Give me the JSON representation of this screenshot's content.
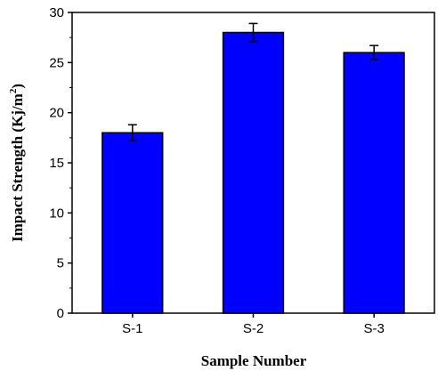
{
  "chart_data": {
    "type": "bar",
    "categories": [
      "S-1",
      "S-2",
      "S-3"
    ],
    "values": [
      18,
      28,
      26
    ],
    "errors": [
      0.8,
      0.9,
      0.7
    ],
    "xlabel": "Sample Number",
    "ylabel": {
      "prefix": "Impact Strength (Kj/m",
      "superscript": "2",
      "suffix": ")"
    },
    "ylim": [
      0,
      30
    ],
    "yticks": [
      "0",
      "5",
      "10",
      "15",
      "20",
      "25",
      "30"
    ],
    "grid": false,
    "legend": "none",
    "bar_color": "#0000ff",
    "bar_edge_color": "#000000"
  }
}
